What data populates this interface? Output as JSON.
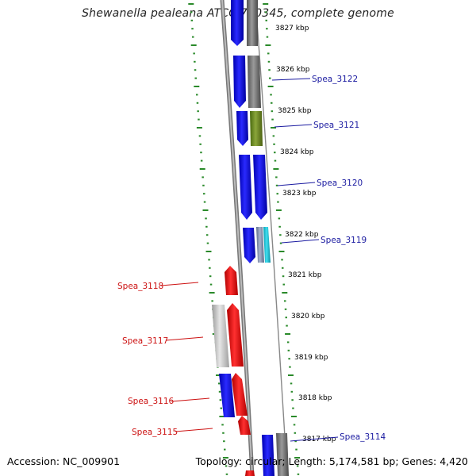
{
  "header": {
    "title": "Shewanella pealeana ATCC 700345, complete genome"
  },
  "footer": {
    "accession": "Accession: NC_009901",
    "summary": "Topology: circular; Length: 5,174,581 bp; Genes: 4,420"
  },
  "colors": {
    "ruler_dots": "#2a8a2a",
    "label_forward": "#1a1aa0",
    "label_reverse": "#cc1111",
    "track_line": "#888888"
  },
  "kbp_ticks": [
    {
      "label": "3827 kbp"
    },
    {
      "label": "3826 kbp"
    },
    {
      "label": "3825 kbp"
    },
    {
      "label": "3824 kbp"
    },
    {
      "label": "3823 kbp"
    },
    {
      "label": "3822 kbp"
    },
    {
      "label": "3821 kbp"
    },
    {
      "label": "3820 kbp"
    },
    {
      "label": "3819 kbp"
    },
    {
      "label": "3818 kbp"
    },
    {
      "label": "3817 kbp"
    }
  ],
  "gene_labels_forward": [
    {
      "name": "Spea_3122"
    },
    {
      "name": "Spea_3121"
    },
    {
      "name": "Spea_3120"
    },
    {
      "name": "Spea_3119"
    },
    {
      "name": "Spea_3114"
    }
  ],
  "gene_labels_reverse": [
    {
      "name": "Spea_3118"
    },
    {
      "name": "Spea_3117"
    },
    {
      "name": "Spea_3116"
    },
    {
      "name": "Spea_3115"
    }
  ]
}
